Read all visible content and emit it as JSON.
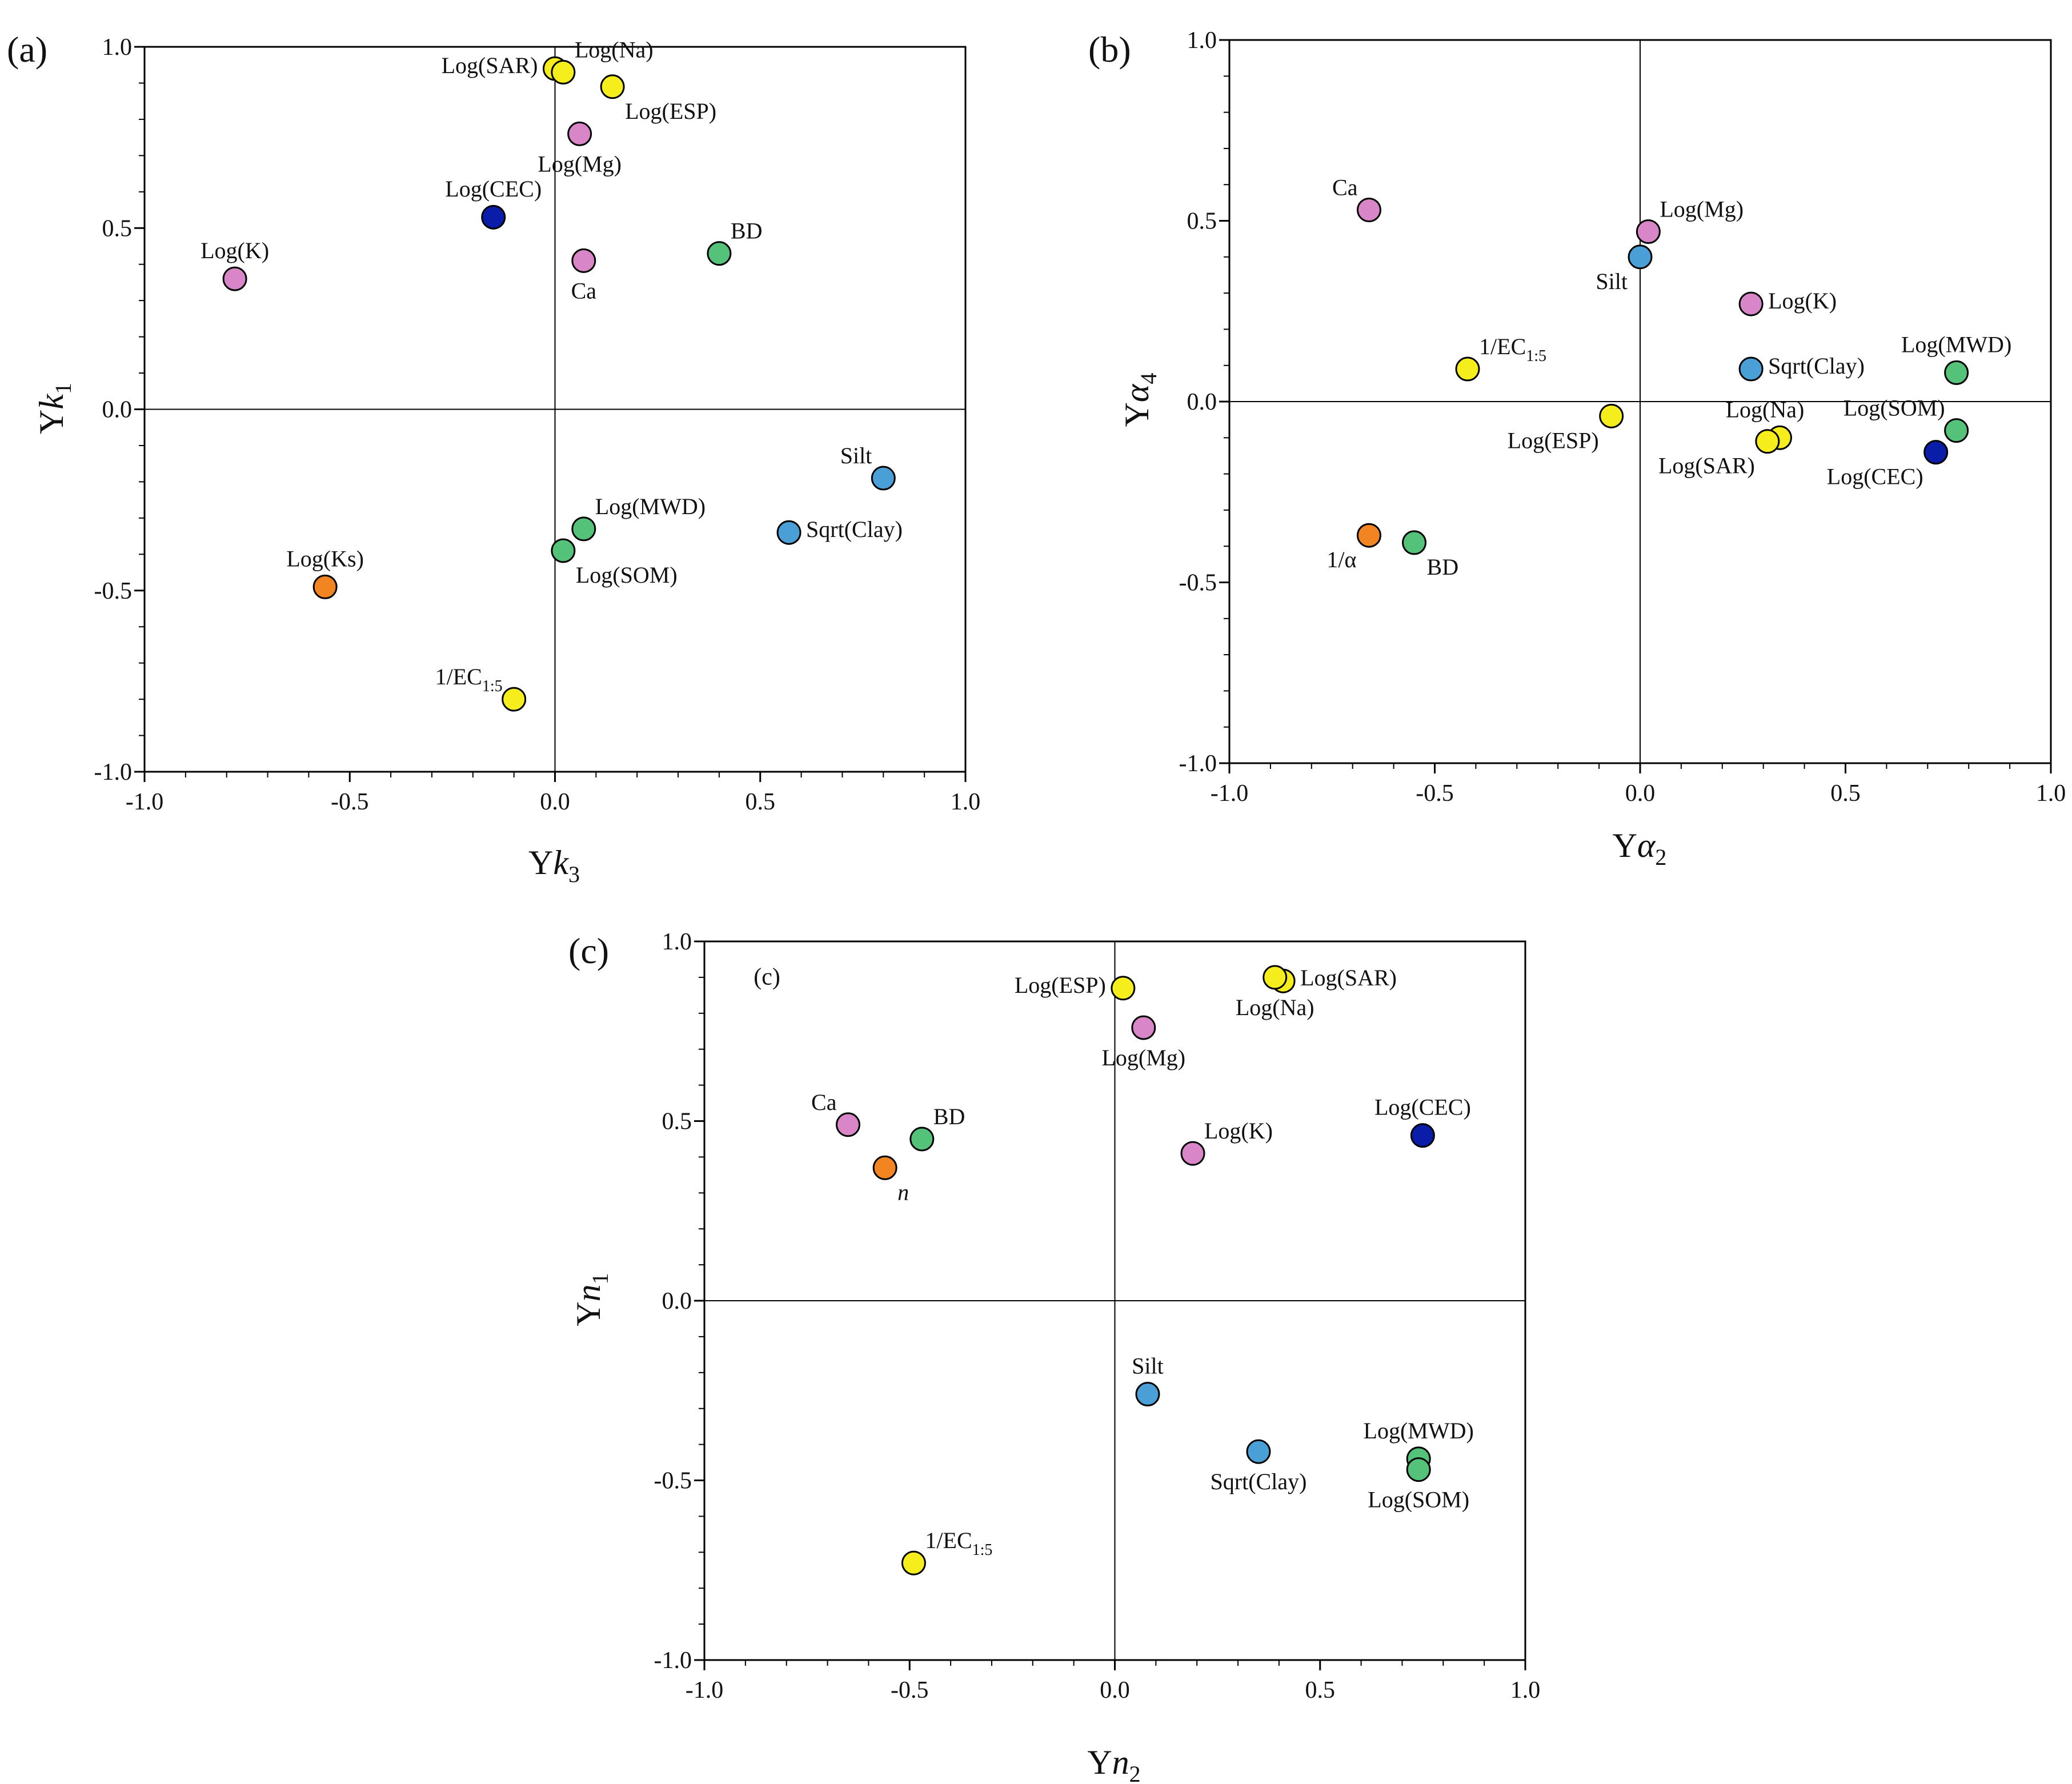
{
  "colors": {
    "yellow": "#f5ee1c",
    "pink": "#d986c8",
    "green": "#55c27a",
    "blue": "#4a9fd6",
    "navy": "#0a1da8",
    "orange": "#f28522",
    "axis": "#000000"
  },
  "chart_data": [
    {
      "type": "scatter",
      "panel_label": "(a)",
      "xlabel": {
        "base": "Y",
        "var": "k",
        "sub": "3"
      },
      "ylabel": {
        "base": "Y",
        "var": "k",
        "sub": "1"
      },
      "xlim": [
        -1.0,
        1.0
      ],
      "ylim": [
        -1.0,
        1.0
      ],
      "x_ticks": [
        "-1.0",
        "-0.5",
        "0.0",
        "0.5",
        "1.0"
      ],
      "y_ticks": [
        "-1.0",
        "-0.5",
        "0.0",
        "0.5",
        "1.0"
      ],
      "points": [
        {
          "label": "Log(SAR)",
          "x": 0.0,
          "y": 0.94,
          "color": "yellow",
          "anchor": "left"
        },
        {
          "label": "Log(Na)",
          "x": 0.02,
          "y": 0.93,
          "color": "yellow",
          "anchor": "upper-right"
        },
        {
          "label": "Log(ESP)",
          "x": 0.14,
          "y": 0.89,
          "color": "yellow",
          "anchor": "lower-right"
        },
        {
          "label": "Log(Mg)",
          "x": 0.06,
          "y": 0.76,
          "color": "pink",
          "anchor": "below"
        },
        {
          "label": "Log(CEC)",
          "x": -0.15,
          "y": 0.53,
          "color": "navy",
          "anchor": "above"
        },
        {
          "label": "Log(K)",
          "x": -0.78,
          "y": 0.36,
          "color": "pink",
          "anchor": "above"
        },
        {
          "label": "BD",
          "x": 0.4,
          "y": 0.43,
          "color": "green",
          "anchor": "upper-right"
        },
        {
          "label": "Ca",
          "x": 0.07,
          "y": 0.41,
          "color": "pink",
          "anchor": "below"
        },
        {
          "label": "Silt",
          "x": 0.8,
          "y": -0.19,
          "color": "blue",
          "anchor": "upper-left"
        },
        {
          "label": "Sqrt(Clay)",
          "x": 0.57,
          "y": -0.34,
          "color": "blue",
          "anchor": "right"
        },
        {
          "label": "Log(MWD)",
          "x": 0.07,
          "y": -0.33,
          "color": "green",
          "anchor": "upper-right"
        },
        {
          "label": "Log(SOM)",
          "x": 0.02,
          "y": -0.39,
          "color": "green",
          "anchor": "lower-right"
        },
        {
          "label": "Log(Ks)",
          "x": -0.56,
          "y": -0.49,
          "color": "orange",
          "anchor": "above"
        },
        {
          "label": "1/EC",
          "sub": "1:5",
          "x": -0.1,
          "y": -0.8,
          "color": "yellow",
          "anchor": "upper-left"
        }
      ]
    },
    {
      "type": "scatter",
      "panel_label": "(b)",
      "xlabel": {
        "base": "Y",
        "var": "α",
        "sub": "2"
      },
      "ylabel": {
        "base": "Y",
        "var": "α",
        "sub": "4"
      },
      "xlim": [
        -1.0,
        1.0
      ],
      "ylim": [
        -1.0,
        1.0
      ],
      "x_ticks": [
        "-1.0",
        "-0.5",
        "0.0",
        "0.5",
        "1.0"
      ],
      "y_ticks": [
        "-1.0",
        "-0.5",
        "0.0",
        "0.5",
        "1.0"
      ],
      "points": [
        {
          "label": "Ca",
          "x": -0.66,
          "y": 0.53,
          "color": "pink",
          "anchor": "upper-left"
        },
        {
          "label": "Log(Mg)",
          "x": 0.02,
          "y": 0.47,
          "color": "pink",
          "anchor": "upper-right"
        },
        {
          "label": "Silt",
          "x": 0.0,
          "y": 0.4,
          "color": "blue",
          "anchor": "lower-left"
        },
        {
          "label": "Log(K)",
          "x": 0.27,
          "y": 0.27,
          "color": "pink",
          "anchor": "right"
        },
        {
          "label": "1/EC",
          "sub": "1:5",
          "x": -0.42,
          "y": 0.09,
          "color": "yellow",
          "anchor": "upper-right"
        },
        {
          "label": "Sqrt(Clay)",
          "x": 0.27,
          "y": 0.09,
          "color": "blue",
          "anchor": "right"
        },
        {
          "label": "Log(MWD)",
          "x": 0.77,
          "y": 0.08,
          "color": "green",
          "anchor": "above"
        },
        {
          "label": "Log(ESP)",
          "x": -0.07,
          "y": -0.04,
          "color": "yellow",
          "anchor": "lower-left"
        },
        {
          "label": "Log(Na)",
          "x": 0.34,
          "y": -0.1,
          "color": "yellow",
          "anchor": "above-mid"
        },
        {
          "label": "Log(SAR)",
          "x": 0.31,
          "y": -0.11,
          "color": "yellow",
          "anchor": "lower-left"
        },
        {
          "label": "Log(SOM)",
          "x": 0.77,
          "y": -0.08,
          "color": "green",
          "anchor": "upper-left"
        },
        {
          "label": "Log(CEC)",
          "x": 0.72,
          "y": -0.14,
          "color": "navy",
          "anchor": "lower-left"
        },
        {
          "label": "1/α",
          "x": -0.66,
          "y": -0.37,
          "color": "orange",
          "anchor": "lower-left"
        },
        {
          "label": "BD",
          "x": -0.55,
          "y": -0.39,
          "color": "green",
          "anchor": "lower-right"
        }
      ]
    },
    {
      "type": "scatter",
      "panel_label": "(c)",
      "inner_label": "(c)",
      "xlabel": {
        "base": "Y",
        "var": "n",
        "sub": "2"
      },
      "ylabel": {
        "base": "Y",
        "var": "n",
        "sub": "1"
      },
      "xlim": [
        -1.0,
        1.0
      ],
      "ylim": [
        -1.0,
        1.0
      ],
      "x_ticks": [
        "-1.0",
        "-0.5",
        "0.0",
        "0.5",
        "1.0"
      ],
      "y_ticks": [
        "-1.0",
        "-0.5",
        "0.0",
        "0.5",
        "1.0"
      ],
      "points": [
        {
          "label": "Log(ESP)",
          "x": 0.02,
          "y": 0.87,
          "color": "yellow",
          "anchor": "left"
        },
        {
          "label": "Log(SAR)",
          "x": 0.41,
          "y": 0.89,
          "color": "yellow",
          "anchor": "right"
        },
        {
          "label": "Log(Na)",
          "x": 0.39,
          "y": 0.9,
          "color": "yellow",
          "anchor": "below"
        },
        {
          "label": "Log(Mg)",
          "x": 0.07,
          "y": 0.76,
          "color": "pink",
          "anchor": "below"
        },
        {
          "label": "Ca",
          "x": -0.65,
          "y": 0.49,
          "color": "pink",
          "anchor": "upper-left"
        },
        {
          "label": "BD",
          "x": -0.47,
          "y": 0.45,
          "color": "green",
          "anchor": "upper-right"
        },
        {
          "label": "n",
          "italic": true,
          "x": -0.56,
          "y": 0.37,
          "color": "orange",
          "anchor": "lower-right"
        },
        {
          "label": "Log(K)",
          "x": 0.19,
          "y": 0.41,
          "color": "pink",
          "anchor": "upper-right"
        },
        {
          "label": "Log(CEC)",
          "x": 0.75,
          "y": 0.46,
          "color": "navy",
          "anchor": "above"
        },
        {
          "label": "Silt",
          "x": 0.08,
          "y": -0.26,
          "color": "blue",
          "anchor": "above"
        },
        {
          "label": "Sqrt(Clay)",
          "x": 0.35,
          "y": -0.42,
          "color": "blue",
          "anchor": "below"
        },
        {
          "label": "Log(MWD)",
          "x": 0.74,
          "y": -0.44,
          "color": "green",
          "anchor": "above"
        },
        {
          "label": "Log(SOM)",
          "x": 0.74,
          "y": -0.47,
          "color": "green",
          "anchor": "below"
        },
        {
          "label": "1/EC",
          "sub": "1:5",
          "x": -0.49,
          "y": -0.73,
          "color": "yellow",
          "anchor": "upper-right"
        }
      ]
    }
  ]
}
